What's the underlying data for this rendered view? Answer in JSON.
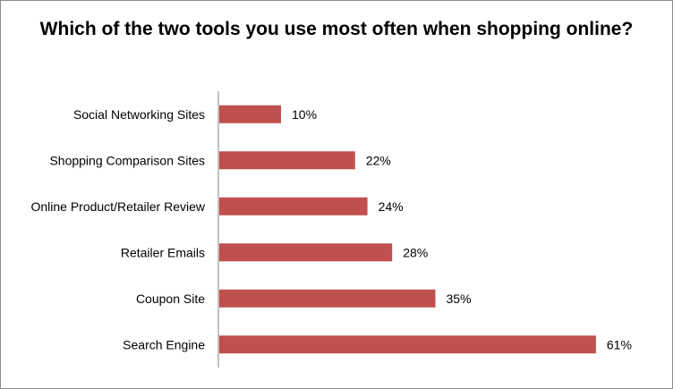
{
  "chart_data": {
    "type": "bar",
    "orientation": "horizontal",
    "title": "Which of the two tools you use most often when shopping online?",
    "categories": [
      "Social Networking Sites",
      "Shopping Comparison Sites",
      "Online Product/Retailer Review",
      "Retailer Emails",
      "Coupon Site",
      "Search Engine"
    ],
    "values": [
      10,
      22,
      24,
      28,
      35,
      61
    ],
    "value_labels": [
      "10%",
      "22%",
      "24%",
      "28%",
      "35%",
      "61%"
    ],
    "xlim": [
      0,
      66
    ],
    "grid": false,
    "legend": "none",
    "bar_color": "#C0504D",
    "axis_color": "#868686"
  }
}
